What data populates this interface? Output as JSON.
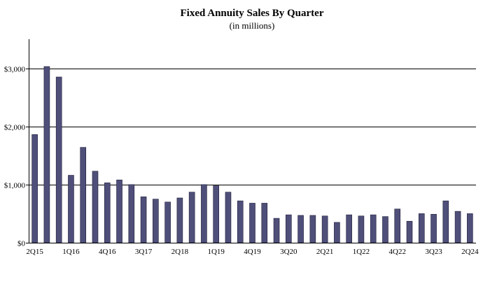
{
  "chart_data": {
    "type": "bar",
    "title": "Fixed Annuity Sales By Quarter",
    "subtitle": "(in millions)",
    "xlabel": "",
    "ylabel": "",
    "ylim": [
      0,
      3500
    ],
    "yticks": [
      0,
      1000,
      2000,
      3000
    ],
    "ytick_labels": [
      "$0",
      "$1,000",
      "$2,000",
      "$3,000"
    ],
    "grid": "horizontal",
    "bar_color": "#4f4f7a",
    "categories": [
      "2Q15",
      "3Q15",
      "4Q15",
      "1Q16",
      "2Q16",
      "3Q16",
      "4Q16",
      "1Q17",
      "2Q17",
      "3Q17",
      "4Q17",
      "1Q18",
      "2Q18",
      "3Q18",
      "4Q18",
      "1Q19",
      "2Q19",
      "3Q19",
      "4Q19",
      "1Q20",
      "2Q20",
      "3Q20",
      "4Q20",
      "1Q21",
      "2Q21",
      "3Q21",
      "4Q21",
      "1Q22",
      "2Q22",
      "3Q22",
      "4Q22",
      "1Q23",
      "2Q23",
      "3Q23",
      "4Q23",
      "1Q24",
      "2Q24"
    ],
    "values": [
      1860,
      3030,
      2850,
      1160,
      1640,
      1230,
      1030,
      1080,
      1000,
      790,
      750,
      700,
      770,
      870,
      1000,
      980,
      870,
      720,
      680,
      680,
      420,
      480,
      470,
      470,
      460,
      350,
      480,
      460,
      480,
      450,
      580,
      370,
      500,
      490,
      720,
      540,
      500
    ],
    "x_tick_labels": [
      {
        "index": 0,
        "label": "2Q15"
      },
      {
        "index": 3,
        "label": "1Q16"
      },
      {
        "index": 6,
        "label": "4Q16"
      },
      {
        "index": 9,
        "label": "3Q17"
      },
      {
        "index": 12,
        "label": "2Q18"
      },
      {
        "index": 15,
        "label": "1Q19"
      },
      {
        "index": 18,
        "label": "4Q19"
      },
      {
        "index": 21,
        "label": "3Q20"
      },
      {
        "index": 24,
        "label": "2Q21"
      },
      {
        "index": 27,
        "label": "1Q22"
      },
      {
        "index": 30,
        "label": "4Q22"
      },
      {
        "index": 33,
        "label": "3Q23"
      },
      {
        "index": 36,
        "label": "2Q24"
      }
    ]
  }
}
